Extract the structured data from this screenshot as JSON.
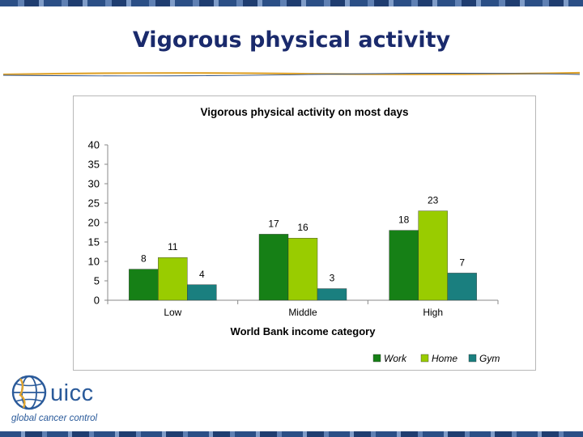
{
  "slide": {
    "title": "Vigorous physical activity"
  },
  "logo": {
    "name": "uicc",
    "tagline": "global cancer control"
  },
  "colors": {
    "work": "#168016",
    "home": "#99cc00",
    "gym": "#1a7f7f",
    "title": "#1a2a6c",
    "border": "#2b4f86"
  },
  "chart_data": {
    "type": "bar",
    "title": "Vigorous physical activity on most days",
    "xlabel": "World Bank income category",
    "ylabel": "",
    "categories": [
      "Low",
      "Middle",
      "High"
    ],
    "series": [
      {
        "name": "Work",
        "values": [
          8,
          17,
          18
        ]
      },
      {
        "name": "Home",
        "values": [
          11,
          16,
          23
        ]
      },
      {
        "name": "Gym",
        "values": [
          4,
          3,
          7
        ]
      }
    ],
    "ylim": [
      0,
      40
    ],
    "yticks": [
      0,
      5,
      10,
      15,
      20,
      25,
      30,
      35,
      40
    ],
    "grid": false,
    "legend": "bottom-right"
  }
}
